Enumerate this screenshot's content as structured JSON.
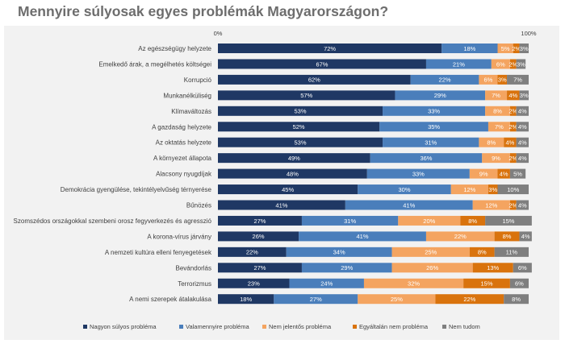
{
  "chart_data": {
    "type": "bar",
    "orientation": "horizontal",
    "stacked": "100%",
    "title": "Mennyire súlyosak egyes problémák Magyarországon?",
    "x_ticks": [
      "0%",
      "100%"
    ],
    "xlim": [
      0,
      100
    ],
    "legend_position": "bottom",
    "categories": [
      "Az egészségügy helyzete",
      "Emelkedő árak, a megélhetés költségei",
      "Korrupció",
      "Munkanélküliség",
      "Klímaváltozás",
      "A gazdaság helyzete",
      "Az oktatás helyzete",
      "A környezet állapota",
      "Alacsony nyugdíjak",
      "Demokrácia gyengülése, tekintélyelvűség térnyerése",
      "Bűnözés",
      "Szomszédos országokkal szembeni orosz fegyverkezés és agresszió",
      "A korona-vírus járvány",
      "A nemzeti kultúra elleni fenyegetések",
      "Bevándorlás",
      "Terrorizmus",
      "A nemi szerepek átalakulása"
    ],
    "series": [
      {
        "name": "Nagyon súlyos probléma",
        "color": "#1f3864",
        "label_color": "#ffffff",
        "values": [
          72,
          67,
          62,
          57,
          53,
          52,
          53,
          49,
          48,
          45,
          41,
          27,
          26,
          22,
          27,
          23,
          18
        ]
      },
      {
        "name": "Valamennyire probléma",
        "color": "#4a7ebb",
        "label_color": "#ffffff",
        "values": [
          18,
          21,
          22,
          29,
          33,
          35,
          31,
          36,
          33,
          30,
          41,
          31,
          41,
          34,
          29,
          24,
          27
        ]
      },
      {
        "name": "Nem jelentős probléma",
        "color": "#f4a460",
        "label_color": "#ffffff",
        "values": [
          5,
          6,
          6,
          7,
          8,
          7,
          8,
          9,
          9,
          12,
          12,
          20,
          22,
          25,
          26,
          32,
          25
        ]
      },
      {
        "name": "Egyáltalán nem probléma",
        "color": "#d9730d",
        "label_color": "#ffffff",
        "values": [
          2,
          2,
          3,
          4,
          2,
          2,
          4,
          2,
          4,
          3,
          2,
          8,
          8,
          8,
          13,
          15,
          22
        ]
      },
      {
        "name": "Nem tudom",
        "color": "#7f7f7f",
        "label_color": "#ffffff",
        "values": [
          3,
          3,
          7,
          3,
          4,
          4,
          4,
          4,
          5,
          10,
          4,
          15,
          4,
          11,
          6,
          6,
          8
        ]
      }
    ]
  }
}
